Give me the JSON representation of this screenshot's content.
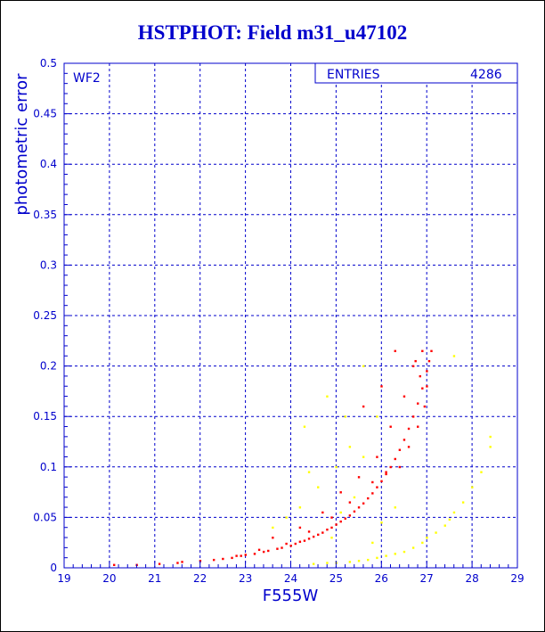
{
  "chart_data": {
    "type": "scatter",
    "title": "HSTPHOT: Field m31_u47102",
    "xlabel": "F555W",
    "ylabel": "photometric error",
    "panel_label": "WF2",
    "stats_label": "ENTRIES",
    "stats_value": "4286",
    "xlim": [
      19,
      29
    ],
    "ylim": [
      0,
      0.5
    ],
    "x_ticks": [
      "19",
      "20",
      "21",
      "22",
      "23",
      "24",
      "25",
      "26",
      "27",
      "28",
      "29"
    ],
    "y_ticks": [
      "0",
      "0.05",
      "0.1",
      "0.15",
      "0.2",
      "0.25",
      "0.3",
      "0.35",
      "0.4",
      "0.45",
      "0.5"
    ],
    "grid": true,
    "series": [
      {
        "color": "#ff0000",
        "description_values": "main error-magnitude sequence",
        "points": [
          [
            20.1,
            0.003
          ],
          [
            20.6,
            0.003
          ],
          [
            21.1,
            0.004
          ],
          [
            21.5,
            0.005
          ],
          [
            21.6,
            0.006
          ],
          [
            22.0,
            0.007
          ],
          [
            22.3,
            0.008
          ],
          [
            22.5,
            0.009
          ],
          [
            22.7,
            0.01
          ],
          [
            22.9,
            0.012
          ],
          [
            23.0,
            0.013
          ],
          [
            23.2,
            0.014
          ],
          [
            23.4,
            0.016
          ],
          [
            23.5,
            0.017
          ],
          [
            23.7,
            0.019
          ],
          [
            23.8,
            0.02
          ],
          [
            24.0,
            0.022
          ],
          [
            24.1,
            0.024
          ],
          [
            24.2,
            0.026
          ],
          [
            24.3,
            0.027
          ],
          [
            24.4,
            0.029
          ],
          [
            24.5,
            0.031
          ],
          [
            24.6,
            0.033
          ],
          [
            24.7,
            0.035
          ],
          [
            24.8,
            0.038
          ],
          [
            24.9,
            0.04
          ],
          [
            25.0,
            0.043
          ],
          [
            25.1,
            0.046
          ],
          [
            25.2,
            0.049
          ],
          [
            25.3,
            0.052
          ],
          [
            25.4,
            0.056
          ],
          [
            25.5,
            0.06
          ],
          [
            25.6,
            0.064
          ],
          [
            25.7,
            0.069
          ],
          [
            25.8,
            0.074
          ],
          [
            25.9,
            0.08
          ],
          [
            26.0,
            0.086
          ],
          [
            26.1,
            0.093
          ],
          [
            26.2,
            0.1
          ],
          [
            26.3,
            0.108
          ],
          [
            26.4,
            0.117
          ],
          [
            26.5,
            0.127
          ],
          [
            26.6,
            0.138
          ],
          [
            26.7,
            0.15
          ],
          [
            26.8,
            0.163
          ],
          [
            26.9,
            0.178
          ],
          [
            27.0,
            0.195
          ],
          [
            27.05,
            0.205
          ],
          [
            27.1,
            0.215
          ],
          [
            23.6,
            0.03
          ],
          [
            24.2,
            0.04
          ],
          [
            24.7,
            0.055
          ],
          [
            25.1,
            0.075
          ],
          [
            25.5,
            0.09
          ],
          [
            25.9,
            0.11
          ],
          [
            26.2,
            0.14
          ],
          [
            26.5,
            0.17
          ],
          [
            26.7,
            0.2
          ],
          [
            26.3,
            0.215
          ],
          [
            26.0,
            0.18
          ],
          [
            25.6,
            0.16
          ],
          [
            26.9,
            0.215
          ],
          [
            27.0,
            0.18
          ],
          [
            26.8,
            0.14
          ],
          [
            26.6,
            0.12
          ],
          [
            26.4,
            0.1
          ],
          [
            26.1,
            0.095
          ],
          [
            25.8,
            0.085
          ],
          [
            25.3,
            0.065
          ],
          [
            24.9,
            0.05
          ],
          [
            24.4,
            0.036
          ],
          [
            23.9,
            0.024
          ],
          [
            23.3,
            0.018
          ],
          [
            22.8,
            0.012
          ],
          [
            26.75,
            0.205
          ],
          [
            26.85,
            0.19
          ],
          [
            26.95,
            0.16
          ]
        ]
      },
      {
        "color": "#ffff00",
        "description_values": "secondary sequence and outliers",
        "points": [
          [
            24.5,
            0.004
          ],
          [
            24.8,
            0.005
          ],
          [
            25.0,
            0.005
          ],
          [
            25.3,
            0.006
          ],
          [
            25.5,
            0.007
          ],
          [
            25.7,
            0.008
          ],
          [
            25.9,
            0.01
          ],
          [
            26.1,
            0.012
          ],
          [
            26.3,
            0.014
          ],
          [
            26.5,
            0.016
          ],
          [
            26.7,
            0.02
          ],
          [
            26.9,
            0.025
          ],
          [
            27.0,
            0.03
          ],
          [
            27.2,
            0.035
          ],
          [
            27.4,
            0.042
          ],
          [
            27.5,
            0.048
          ],
          [
            27.6,
            0.055
          ],
          [
            27.8,
            0.065
          ],
          [
            28.0,
            0.08
          ],
          [
            28.2,
            0.095
          ],
          [
            28.4,
            0.12
          ],
          [
            25.0,
            0.1
          ],
          [
            24.2,
            0.06
          ],
          [
            24.6,
            0.08
          ],
          [
            25.2,
            0.15
          ],
          [
            25.6,
            0.2
          ],
          [
            24.8,
            0.17
          ],
          [
            26.3,
            0.06
          ],
          [
            25.6,
            0.11
          ],
          [
            25.4,
            0.07
          ],
          [
            23.9,
            0.05
          ],
          [
            24.3,
            0.14
          ],
          [
            26.0,
            0.045
          ],
          [
            25.8,
            0.025
          ],
          [
            24.9,
            0.03
          ],
          [
            23.6,
            0.04
          ],
          [
            25.1,
            0.055
          ],
          [
            25.9,
            0.15
          ],
          [
            24.4,
            0.095
          ],
          [
            28.4,
            0.13
          ],
          [
            27.6,
            0.21
          ],
          [
            25.3,
            0.12
          ]
        ]
      }
    ]
  }
}
